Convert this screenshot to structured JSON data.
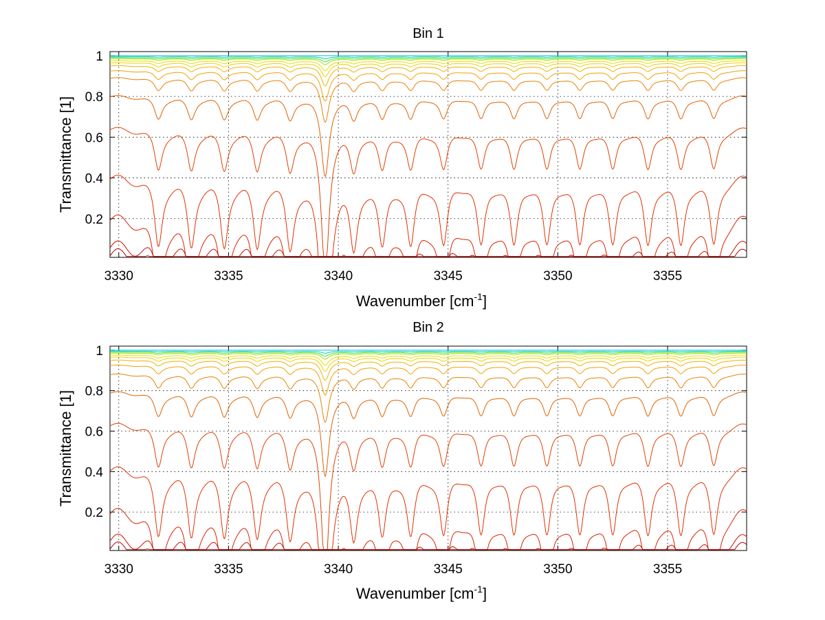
{
  "chart_data": [
    {
      "type": "line",
      "title": "Bin 1",
      "xlabel": "Wavenumber [cm",
      "xlabel_sup": "-1",
      "xlabel_end": "]",
      "ylabel": "Transmittance [1]",
      "xlim": [
        3329.6,
        3358.6
      ],
      "ylim": [
        0.01,
        1.02
      ],
      "xticks": [
        "3330",
        "3335",
        "3340",
        "3345",
        "3350",
        "3355"
      ],
      "yticks": [
        "0.2",
        "0.4",
        "0.6",
        "0.8",
        "1"
      ],
      "grid": true,
      "line_peak_positions": [
        3331.8,
        3333.3,
        3334.8,
        3336.3,
        3337.8,
        3339.4,
        3340.7,
        3342.0,
        3343.3,
        3344.8,
        3346.5,
        3348.0,
        3349.5,
        3351.0,
        3352.5,
        3354.1,
        3355.6,
        3357.1
      ],
      "series_baselines": [
        1.0,
        0.995,
        0.99,
        0.985,
        0.975,
        0.965,
        0.95,
        0.925,
        0.89,
        0.8,
        0.64,
        0.4,
        0.2,
        0.06,
        0.02
      ],
      "series_colors": [
        "#00c0ff",
        "#00d0a0",
        "#40e040",
        "#a0e000",
        "#e0e000",
        "#f0d000",
        "#f0b000",
        "#f0a000",
        "#e88000",
        "#e06000",
        "#e04000",
        "#e03000",
        "#d82000",
        "#c81000",
        "#b00000"
      ]
    },
    {
      "type": "line",
      "title": "Bin 2",
      "xlabel": "Wavenumber [cm",
      "xlabel_sup": "-1",
      "xlabel_end": "]",
      "ylabel": "Transmittance [1]",
      "xlim": [
        3329.6,
        3358.6
      ],
      "ylim": [
        0.01,
        1.02
      ],
      "xticks": [
        "3330",
        "3335",
        "3340",
        "3345",
        "3350",
        "3355"
      ],
      "yticks": [
        "0.2",
        "0.4",
        "0.6",
        "0.8",
        "1"
      ],
      "grid": true,
      "line_peak_positions": [
        3331.8,
        3333.3,
        3334.8,
        3336.3,
        3337.8,
        3339.4,
        3340.7,
        3342.0,
        3343.3,
        3344.8,
        3346.5,
        3348.0,
        3349.5,
        3351.0,
        3352.5,
        3354.1,
        3355.6,
        3357.1
      ],
      "series_baselines": [
        1.0,
        0.995,
        0.99,
        0.985,
        0.975,
        0.965,
        0.95,
        0.925,
        0.88,
        0.79,
        0.63,
        0.41,
        0.2,
        0.06,
        0.02
      ],
      "series_colors": [
        "#00c0ff",
        "#00d0a0",
        "#40e040",
        "#a0e000",
        "#e0e000",
        "#f0d000",
        "#f0b000",
        "#f0a000",
        "#e88000",
        "#e06000",
        "#e04000",
        "#e03000",
        "#d82000",
        "#c81000",
        "#b00000"
      ]
    }
  ]
}
